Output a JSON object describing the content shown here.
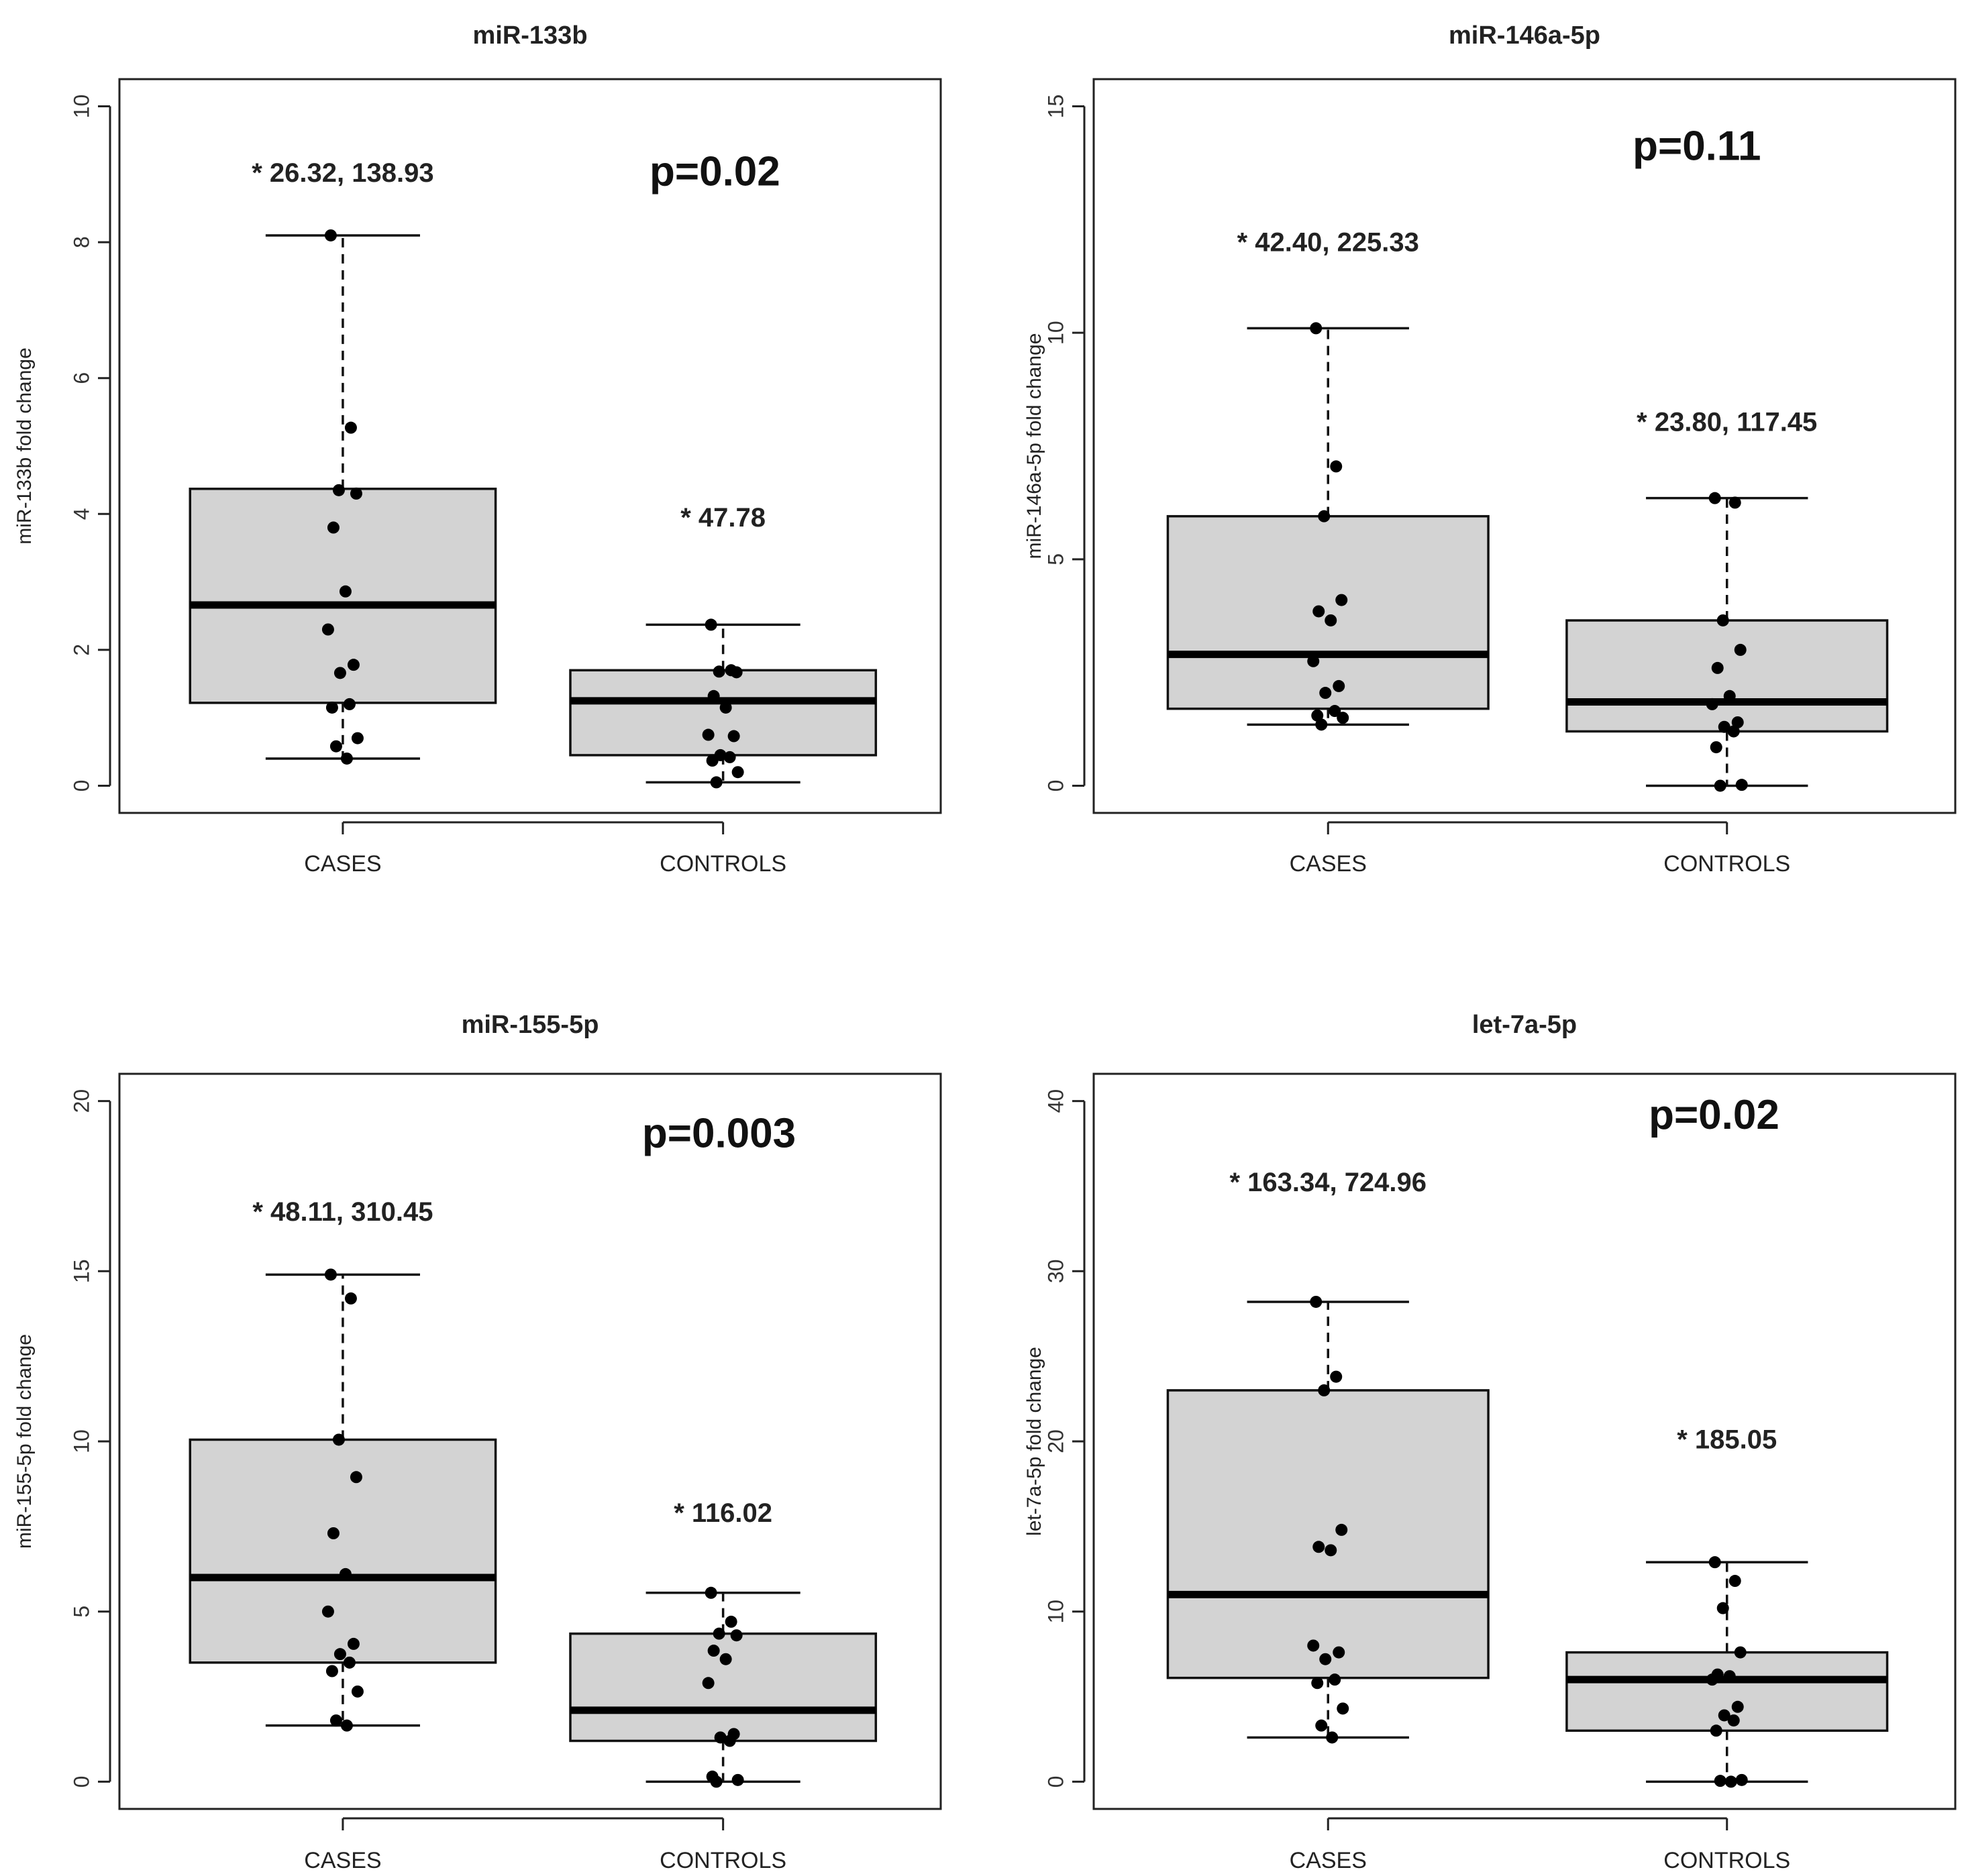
{
  "chart_data": [
    {
      "type": "box",
      "title": "miR-133b",
      "ylabel": "miR-133b fold change",
      "ylim": [
        -0.4,
        10.4
      ],
      "yticks": [
        0,
        2,
        4,
        6,
        8,
        10
      ],
      "categories": [
        "CASES",
        "CONTROLS"
      ],
      "pvalue": "p=0.02",
      "boxes": [
        {
          "category": "CASES",
          "annotation": "* 26.32, 138.93",
          "q1": 1.22,
          "median": 2.66,
          "q3": 4.37,
          "whisker_low": 0.4,
          "whisker_high": 8.1,
          "points": [
            8.1,
            5.27,
            4.35,
            4.3,
            3.8,
            2.86,
            2.3,
            1.78,
            1.66,
            1.2,
            1.15,
            0.7,
            0.58,
            0.4
          ]
        },
        {
          "category": "CONTROLS",
          "annotation": "* 47.78",
          "q1": 0.45,
          "median": 1.25,
          "q3": 1.7,
          "whisker_low": 0.05,
          "whisker_high": 2.37,
          "points": [
            2.37,
            1.7,
            1.68,
            1.67,
            1.32,
            1.15,
            0.75,
            0.73,
            0.45,
            0.42,
            0.37,
            0.2,
            0.05
          ]
        }
      ]
    },
    {
      "type": "box",
      "title": "miR-146a-5p",
      "ylabel": "miR-146a-5p fold change",
      "ylim": [
        -0.6,
        15.6
      ],
      "yticks": [
        0,
        5,
        10,
        15
      ],
      "categories": [
        "CASES",
        "CONTROLS"
      ],
      "pvalue": "p=0.11",
      "boxes": [
        {
          "category": "CASES",
          "annotation": "* 42.40, 225.33",
          "q1": 1.7,
          "median": 2.9,
          "q3": 5.95,
          "whisker_low": 1.35,
          "whisker_high": 10.1,
          "points": [
            10.1,
            7.05,
            5.95,
            4.1,
            3.85,
            3.65,
            2.75,
            2.2,
            2.05,
            1.65,
            1.55,
            1.5,
            1.35
          ]
        },
        {
          "category": "CONTROLS",
          "annotation": "* 23.80, 117.45",
          "q1": 1.2,
          "median": 1.85,
          "q3": 3.65,
          "whisker_low": 0.0,
          "whisker_high": 6.35,
          "points": [
            6.35,
            6.25,
            3.65,
            3.0,
            2.6,
            1.98,
            1.8,
            1.4,
            1.3,
            1.2,
            0.85,
            0.02,
            0.0
          ]
        }
      ]
    },
    {
      "type": "box",
      "title": "miR-155-5p",
      "ylabel": "miR-155-5p fold change",
      "ylim": [
        -0.8,
        20.8
      ],
      "yticks": [
        0,
        5,
        10,
        15,
        20
      ],
      "categories": [
        "CASES",
        "CONTROLS"
      ],
      "pvalue": "p=0.003",
      "boxes": [
        {
          "category": "CASES",
          "annotation": "* 48.11, 310.45",
          "q1": 3.5,
          "median": 6.0,
          "q3": 10.05,
          "whisker_low": 1.65,
          "whisker_high": 14.9,
          "points": [
            14.9,
            14.2,
            10.05,
            8.95,
            7.3,
            6.1,
            5.0,
            4.05,
            3.75,
            3.5,
            3.25,
            2.65,
            1.8,
            1.65
          ]
        },
        {
          "category": "CONTROLS",
          "annotation": "* 116.02",
          "q1": 1.2,
          "median": 2.1,
          "q3": 4.35,
          "whisker_low": 0.0,
          "whisker_high": 5.55,
          "points": [
            5.55,
            4.7,
            4.35,
            4.3,
            3.85,
            3.6,
            2.9,
            1.4,
            1.3,
            1.2,
            0.15,
            0.05,
            0.0
          ]
        }
      ]
    },
    {
      "type": "box",
      "title": "let-7a-5p",
      "ylabel": "let-7a-5p fold change",
      "ylim": [
        -1.6,
        41.6
      ],
      "yticks": [
        0,
        10,
        20,
        30,
        40
      ],
      "categories": [
        "CASES",
        "CONTROLS"
      ],
      "pvalue": "p=0.02",
      "boxes": [
        {
          "category": "CASES",
          "annotation": "* 163.34, 724.96",
          "q1": 6.1,
          "median": 11.0,
          "q3": 23.0,
          "whisker_low": 2.6,
          "whisker_high": 28.2,
          "points": [
            28.2,
            23.8,
            23.0,
            14.8,
            13.8,
            13.6,
            8.0,
            7.6,
            7.2,
            6.0,
            5.8,
            4.3,
            3.3,
            2.6
          ]
        },
        {
          "category": "CONTROLS",
          "annotation": "* 185.05",
          "q1": 3.0,
          "median": 6.0,
          "q3": 7.6,
          "whisker_low": 0.0,
          "whisker_high": 12.9,
          "points": [
            12.9,
            11.8,
            10.2,
            7.6,
            6.3,
            6.2,
            6.0,
            4.4,
            3.9,
            3.6,
            3.0,
            0.1,
            0.05,
            0.0
          ]
        }
      ]
    }
  ]
}
